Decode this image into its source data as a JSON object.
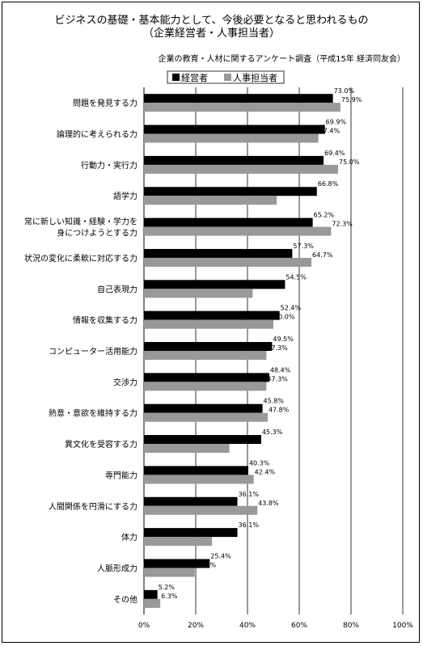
{
  "chart_data": {
    "type": "bar",
    "orientation": "horizontal",
    "title": "ビジネスの基礎・基本能力として、今後必要となると思われるもの",
    "title_line2": "（企業経営者・人事担当者）",
    "subtitle": "企業の教育・人材に関するアンケート調査（平成15年 経済同友会）",
    "categories": [
      [
        "問題を発見する力"
      ],
      [
        "論理的に考えられる力"
      ],
      [
        "行動力・実行力"
      ],
      [
        "語学力"
      ],
      [
        "常に新しい知識・経験・学力を",
        "身につけようとする力"
      ],
      [
        "状況の変化に柔軟に対応する力"
      ],
      [
        "自己表現力"
      ],
      [
        "情報を収集する力"
      ],
      [
        "コンピューター活用能力"
      ],
      [
        "交渉力"
      ],
      [
        "熱意・意欲を維持する力"
      ],
      [
        "異文化を受容する力"
      ],
      [
        "専門能力"
      ],
      [
        "人間関係を円滑にする力"
      ],
      [
        "体力"
      ],
      [
        "人脈形成力"
      ],
      [
        "その他"
      ]
    ],
    "series": [
      {
        "name": "経営者",
        "color": "#000000",
        "values": [
          73.0,
          69.9,
          69.4,
          66.8,
          65.2,
          57.3,
          54.5,
          52.4,
          49.5,
          48.4,
          45.8,
          45.3,
          40.3,
          36.1,
          36.1,
          25.4,
          5.2
        ]
      },
      {
        "name": "人事担当者",
        "color": "#999999",
        "values": [
          75.9,
          67.4,
          75.0,
          51.3,
          72.3,
          64.7,
          42.0,
          50.0,
          47.3,
          47.3,
          47.8,
          33.0,
          42.4,
          43.8,
          26.3,
          19.6,
          6.3
        ]
      }
    ],
    "xlim": [
      0,
      100
    ],
    "xticks": [
      "0%",
      "20%",
      "40%",
      "60%",
      "80%",
      "100%"
    ],
    "grid": true,
    "legend": "top",
    "value_format": "percent_1dp"
  }
}
